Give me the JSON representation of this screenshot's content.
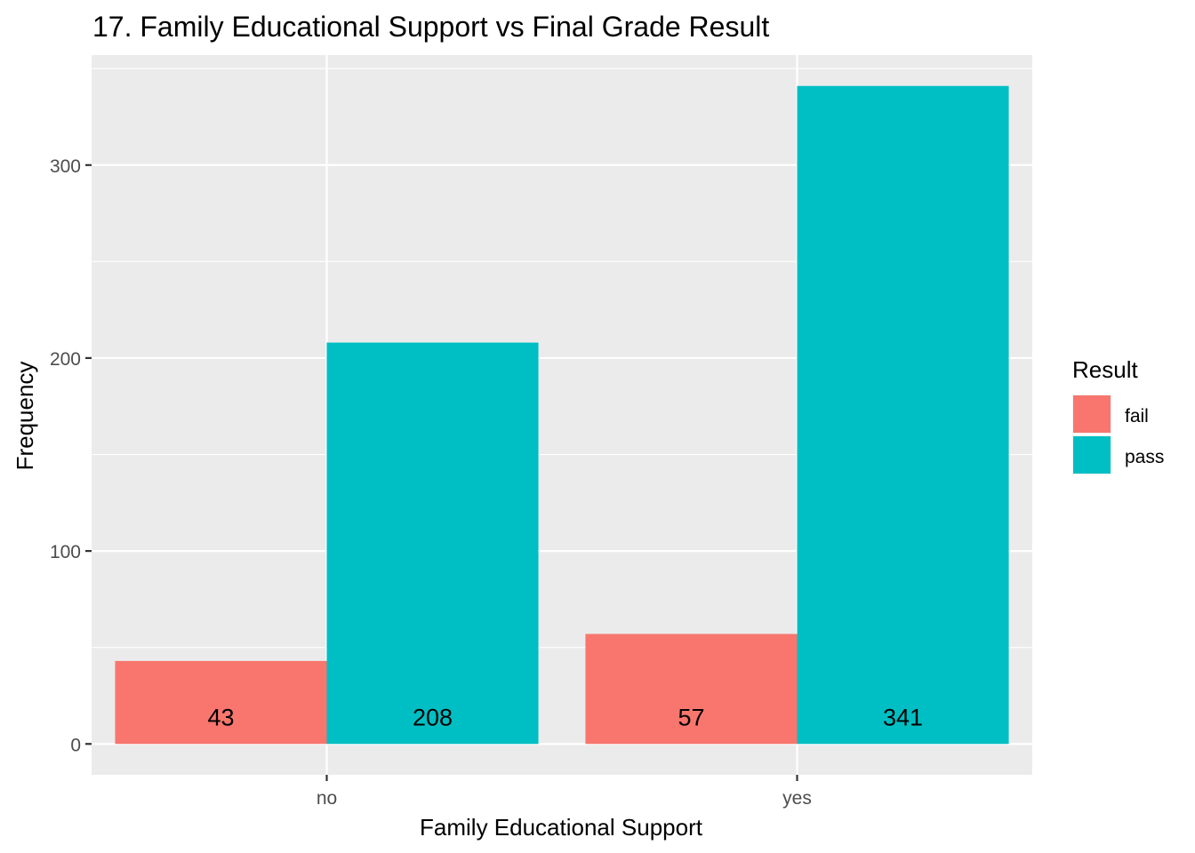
{
  "chart_data": {
    "type": "bar",
    "title": "17. Family Educational Support vs Final Grade Result",
    "xlabel": "Family Educational Support",
    "ylabel": "Frequency",
    "categories": [
      "no",
      "yes"
    ],
    "series": [
      {
        "name": "fail",
        "values": [
          43,
          57
        ],
        "color": "#F8766D"
      },
      {
        "name": "pass",
        "values": [
          208,
          341
        ],
        "color": "#00BFC4"
      }
    ],
    "data_labels": [
      [
        "43",
        "57"
      ],
      [
        "208",
        "341"
      ]
    ],
    "y_ticks": [
      0,
      100,
      200,
      300
    ],
    "y_tick_labels": [
      "0",
      "100",
      "200",
      "300"
    ],
    "ylim": [
      -16,
      357
    ],
    "grid": true,
    "legend": {
      "title": "Result",
      "position": "right"
    },
    "panel_color": "#EBEBEB",
    "grid_color": "#FFFFFF"
  }
}
